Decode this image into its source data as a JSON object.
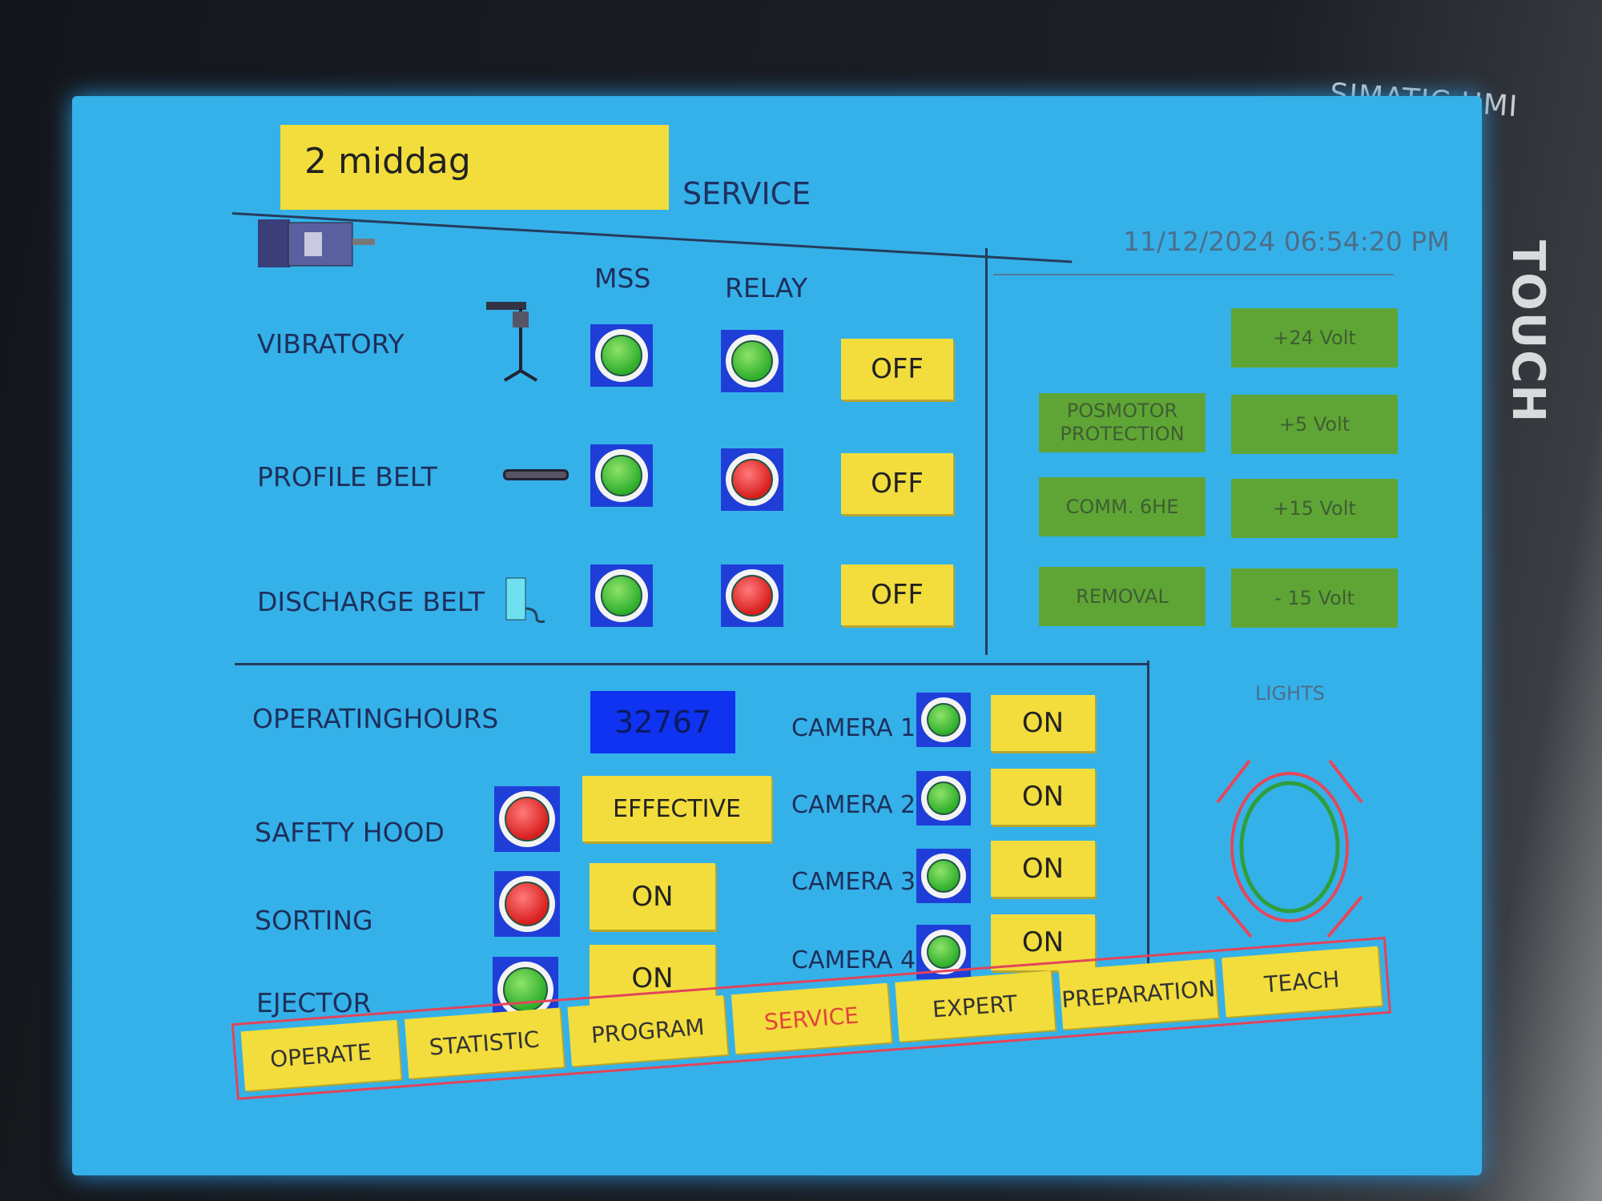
{
  "device": {
    "brand": "SIMATIC HMI",
    "touch": "TOUCH"
  },
  "header": {
    "title": "2 middag",
    "screen_name": "SERVICE",
    "datetime": "11/12/2024 06:54:20 PM"
  },
  "drives": {
    "columns": {
      "mss": "MSS",
      "relay": "RELAY"
    },
    "rows": [
      {
        "label": "VIBRATORY",
        "mss": "green",
        "relay": "green",
        "button": "OFF"
      },
      {
        "label": "PROFILE BELT",
        "mss": "green",
        "relay": "red",
        "button": "OFF"
      },
      {
        "label": "DISCHARGE BELT",
        "mss": "green",
        "relay": "red",
        "button": "OFF"
      }
    ]
  },
  "status_buttons": {
    "plus24": "+24 Volt",
    "posmotor": "POSMOTOR PROTECTION",
    "plus5": "+5 Volt",
    "comm": "COMM. 6HE",
    "plus15": "+15 Volt",
    "removal": "REMOVAL",
    "minus15": "- 15 Volt"
  },
  "operating": {
    "label": "OPERATINGHOURS",
    "value": "32767"
  },
  "functions": [
    {
      "label": "SAFETY HOOD",
      "lamp": "red",
      "button": "EFFECTIVE"
    },
    {
      "label": "SORTING",
      "lamp": "red",
      "button": "ON"
    },
    {
      "label": "EJECTOR",
      "lamp": "green",
      "button": "ON"
    }
  ],
  "cameras": [
    {
      "label": "CAMERA 1",
      "lamp": "green",
      "button": "ON"
    },
    {
      "label": "CAMERA 2",
      "lamp": "green",
      "button": "ON"
    },
    {
      "label": "CAMERA 3",
      "lamp": "green",
      "button": "ON"
    },
    {
      "label": "CAMERA 4",
      "lamp": "green",
      "button": "ON"
    }
  ],
  "lights": {
    "label": "LIGHTS"
  },
  "nav": {
    "active": "SERVICE",
    "tabs": [
      "OPERATE",
      "STATISTIC",
      "PROGRAM",
      "SERVICE",
      "EXPERT",
      "PREPARATION",
      "TEACH"
    ]
  },
  "colors": {
    "screen": "#35b1ea",
    "button_yellow": "#f2dd3c",
    "status_green": "#5fa535",
    "lamp_green": "#2fae2b",
    "lamp_red": "#d81e1e",
    "nav_border": "#e2445a"
  }
}
